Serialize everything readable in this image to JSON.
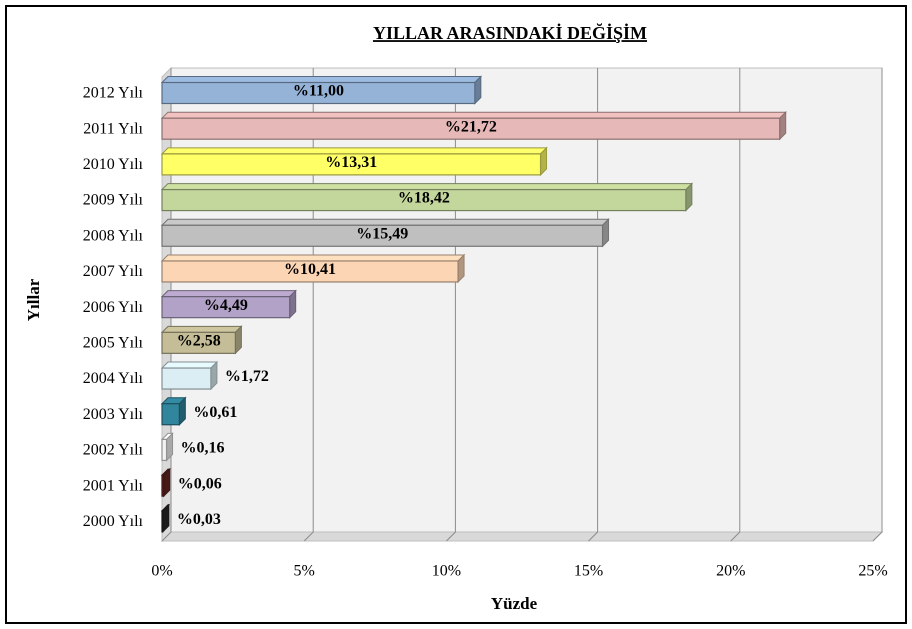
{
  "chart_data": {
    "type": "hbar3d",
    "title": "YILLAR ARASINDAKİ DEĞİŞİM",
    "x_label": "Yüzde",
    "y_label": "Yıllar",
    "categories": [
      "2012 Yılı",
      "2011 Yılı",
      "2010 Yılı",
      "2009 Yılı",
      "2008 Yılı",
      "2007 Yılı",
      "2006 Yılı",
      "2005 Yılı",
      "2004 Yılı",
      "2003 Yılı",
      "2002 Yılı",
      "2001 Yılı",
      "2000 Yılı"
    ],
    "values": [
      11.0,
      21.72,
      13.31,
      18.42,
      15.49,
      10.41,
      4.49,
      2.58,
      1.72,
      0.61,
      0.16,
      0.06,
      0.03
    ],
    "value_labels": [
      "%11,00",
      "%21,72",
      "%13,31",
      "%18,42",
      "%15,49",
      "%10,41",
      "%4,49",
      "%2,58",
      "%1,72",
      "%0,61",
      "%0,16",
      "%0,06",
      "%0,03"
    ],
    "colors": [
      "#95b3d7",
      "#e6b9b8",
      "#ffff66",
      "#c3d69b",
      "#bfbfbf",
      "#fcd5b5",
      "#b3a2c7",
      "#c4bd97",
      "#dbeef4",
      "#31859c",
      "#f2f2f2",
      "#632523",
      "#262626"
    ],
    "xlim": [
      0,
      25
    ],
    "xticks": [
      {
        "value": 0,
        "label": "0%"
      },
      {
        "value": 5,
        "label": "5%"
      },
      {
        "value": 10,
        "label": "10%"
      },
      {
        "value": 15,
        "label": "15%"
      },
      {
        "value": 20,
        "label": "20%"
      },
      {
        "value": 25,
        "label": "25%"
      }
    ],
    "grid": true
  }
}
